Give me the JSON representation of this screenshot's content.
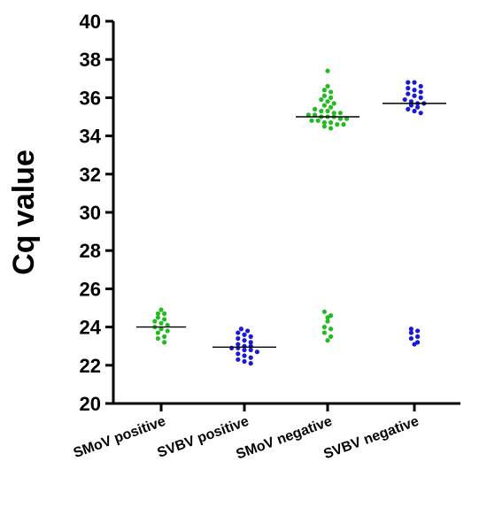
{
  "chart_data": {
    "type": "scatter",
    "title": "",
    "xlabel": "",
    "ylabel": "Cq value",
    "ylim": [
      20,
      40
    ],
    "yticks": [
      20,
      22,
      24,
      26,
      28,
      30,
      32,
      34,
      36,
      38,
      40
    ],
    "grid": false,
    "categories": [
      "SMoV positive",
      "SVBV positive",
      "SMoV negative",
      "SVBV negative"
    ],
    "colors": {
      "green": "#22bb22",
      "blue": "#1a1ad6",
      "median": "#000000"
    },
    "groups": [
      {
        "category": "SMoV positive",
        "color": "#22bb22",
        "median": 24.0,
        "values": [
          24.9,
          24.7,
          24.7,
          24.5,
          24.4,
          24.3,
          24.2,
          24.1,
          24.0,
          23.9,
          23.8,
          23.7,
          23.5,
          23.4,
          23.2
        ]
      },
      {
        "category": "SVBV positive",
        "color": "#1a1ad6",
        "median": 22.95,
        "values": [
          23.9,
          23.8,
          23.7,
          23.6,
          23.5,
          23.4,
          23.3,
          23.2,
          23.1,
          23.0,
          23.0,
          22.9,
          22.9,
          22.8,
          22.8,
          22.7,
          22.6,
          22.5,
          22.4,
          22.3,
          22.2,
          22.1
        ]
      },
      {
        "category": "SMoV negative",
        "color": "#22bb22",
        "median": 35.0,
        "values": [
          37.4,
          36.6,
          36.4,
          36.3,
          36.1,
          36.0,
          35.9,
          35.8,
          35.7,
          35.6,
          35.5,
          35.4,
          35.3,
          35.3,
          35.2,
          35.2,
          35.1,
          35.1,
          35.0,
          35.0,
          35.0,
          34.9,
          34.9,
          34.8,
          34.8,
          34.7,
          34.7,
          34.6,
          34.6,
          34.5,
          34.4,
          24.8,
          24.6,
          24.5,
          24.3,
          24.0,
          23.9,
          23.7,
          23.5,
          23.3
        ]
      },
      {
        "category": "SVBV negative",
        "color": "#1a1ad6",
        "median": 35.7,
        "values": [
          36.8,
          36.8,
          36.6,
          36.5,
          36.4,
          36.3,
          36.2,
          36.1,
          36.0,
          35.9,
          35.8,
          35.7,
          35.7,
          35.6,
          35.5,
          35.4,
          35.3,
          35.2,
          23.9,
          23.8,
          23.7,
          23.5,
          23.4,
          23.2,
          23.1
        ]
      }
    ]
  }
}
